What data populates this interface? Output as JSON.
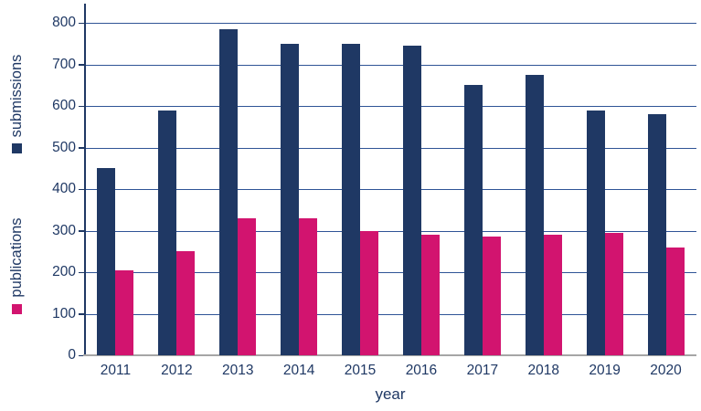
{
  "chart_data": {
    "type": "bar",
    "title": "",
    "categories": [
      "2011",
      "2012",
      "2013",
      "2014",
      "2015",
      "2016",
      "2017",
      "2018",
      "2019",
      "2020"
    ],
    "series": [
      {
        "name": "submissions",
        "color": "#1F3864",
        "values": [
          450,
          590,
          785,
          750,
          750,
          745,
          650,
          675,
          590,
          580
        ]
      },
      {
        "name": "publications",
        "color": "#D2146F",
        "values": [
          205,
          250,
          330,
          330,
          300,
          290,
          285,
          290,
          295,
          260
        ]
      }
    ],
    "xlabel": "year",
    "ylim": [
      0,
      800
    ],
    "ytick_step": 100,
    "yticks": [
      0,
      100,
      200,
      300,
      400,
      500,
      600,
      700,
      800
    ],
    "grid": true,
    "legend_position": "rotated-axis-titles-left"
  },
  "colors": {
    "submissions_bar": "#1F3864",
    "publications_bar": "#D2146F",
    "gridline": "#2F5496",
    "axis_line": "#1F3864",
    "baseline": "#A6A6A6",
    "label_text": "#1F3864"
  }
}
